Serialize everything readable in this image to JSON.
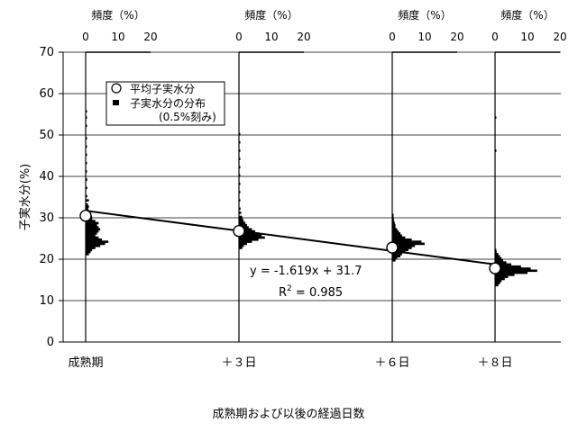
{
  "chart_data": {
    "type": "scatter",
    "ylabel": "子実水分(%)",
    "xlabel": "成熟期および以後の経過日数",
    "ylim": [
      0,
      70
    ],
    "yticks": [
      "0",
      "10",
      "20",
      "30",
      "40",
      "50",
      "60",
      "70"
    ],
    "categories": [
      "成熟期",
      "＋３日",
      "＋６日",
      "＋８日"
    ],
    "x_days": [
      0,
      3,
      6,
      8
    ],
    "freq_axis": {
      "title": "頻度（%）",
      "ticks": [
        "0",
        "10",
        "20"
      ],
      "range": [
        0,
        20
      ]
    },
    "legend": {
      "mean_label": "平均子実水分",
      "dist_label": "子実水分の分布",
      "dist_note": "(0.5%刻み)"
    },
    "mean_moisture": [
      30.5,
      26.8,
      22.8,
      17.8
    ],
    "regression": {
      "slope": -1.619,
      "intercept": 31.7,
      "equation": "y = -1.619x + 31.7",
      "r2_prefix": "R",
      "r2_sup": "2",
      "r2_value": " = 0.985"
    },
    "distributions": [
      {
        "group": "成熟期",
        "bins": [
          [
            21,
            1
          ],
          [
            21.5,
            1.5
          ],
          [
            22,
            2
          ],
          [
            22.5,
            3
          ],
          [
            23,
            4.5
          ],
          [
            23.5,
            6
          ],
          [
            24,
            7
          ],
          [
            24.5,
            5
          ],
          [
            25,
            4
          ],
          [
            25.5,
            3
          ],
          [
            26,
            3.5
          ],
          [
            26.5,
            4
          ],
          [
            27,
            4.5
          ],
          [
            27.5,
            4
          ],
          [
            28,
            3.5
          ],
          [
            28.5,
            4
          ],
          [
            29,
            3
          ],
          [
            29.5,
            2
          ],
          [
            30,
            2
          ],
          [
            30.5,
            1.5
          ],
          [
            31,
            1.2
          ],
          [
            31.5,
            1
          ],
          [
            32,
            0.8
          ],
          [
            32.5,
            1
          ],
          [
            33,
            0.7
          ],
          [
            34,
            1
          ],
          [
            35,
            0.5
          ],
          [
            37,
            0.5
          ],
          [
            39,
            0.5
          ],
          [
            41,
            0.3
          ],
          [
            43,
            0.3
          ],
          [
            45,
            0.3
          ],
          [
            47,
            0.2
          ],
          [
            49,
            0.3
          ],
          [
            52,
            0.2
          ],
          [
            54,
            0.2
          ],
          [
            55.5,
            0.2
          ]
        ]
      },
      {
        "group": "＋３日",
        "bins": [
          [
            22.5,
            1
          ],
          [
            23,
            1.5
          ],
          [
            23.5,
            2.5
          ],
          [
            24,
            4
          ],
          [
            24.5,
            6
          ],
          [
            25,
            8
          ],
          [
            25.5,
            7
          ],
          [
            26,
            6
          ],
          [
            26.5,
            5
          ],
          [
            27,
            4
          ],
          [
            27.5,
            3
          ],
          [
            28,
            2.5
          ],
          [
            28.5,
            2
          ],
          [
            29,
            1.5
          ],
          [
            29.5,
            1.2
          ],
          [
            30,
            1
          ],
          [
            31,
            0.7
          ],
          [
            32,
            0.5
          ],
          [
            34,
            0.4
          ],
          [
            36,
            0.3
          ],
          [
            38,
            0.3
          ],
          [
            40,
            0.2
          ],
          [
            42,
            0.2
          ],
          [
            44,
            0.2
          ],
          [
            46,
            0.2
          ],
          [
            48,
            0.2
          ],
          [
            50,
            0.2
          ]
        ]
      },
      {
        "group": "＋６日",
        "bins": [
          [
            19.5,
            1
          ],
          [
            20,
            1.5
          ],
          [
            20.5,
            2.5
          ],
          [
            21,
            3
          ],
          [
            21.5,
            4
          ],
          [
            22,
            5
          ],
          [
            22.5,
            6
          ],
          [
            23,
            7
          ],
          [
            23.5,
            10
          ],
          [
            24,
            9
          ],
          [
            24.5,
            6
          ],
          [
            25,
            4
          ],
          [
            25.5,
            3
          ],
          [
            26,
            2.5
          ],
          [
            26.5,
            2
          ],
          [
            27,
            1.5
          ],
          [
            27.5,
            1
          ],
          [
            28,
            1
          ],
          [
            28.5,
            0.8
          ],
          [
            29,
            0.6
          ],
          [
            29.5,
            0.5
          ],
          [
            30,
            0.4
          ],
          [
            30.5,
            0.3
          ]
        ]
      },
      {
        "group": "＋８日",
        "bins": [
          [
            13.5,
            1
          ],
          [
            14,
            1.5
          ],
          [
            14.5,
            2
          ],
          [
            15,
            3
          ],
          [
            15.5,
            4
          ],
          [
            16,
            6
          ],
          [
            16.5,
            10
          ],
          [
            17,
            13
          ],
          [
            17.5,
            11
          ],
          [
            18,
            8
          ],
          [
            18.5,
            5
          ],
          [
            19,
            3.5
          ],
          [
            19.5,
            2.5
          ],
          [
            20,
            2
          ],
          [
            20.5,
            1.5
          ],
          [
            21,
            1
          ],
          [
            21.5,
            0.5
          ],
          [
            22,
            0.3
          ],
          [
            46,
            0.2
          ],
          [
            54,
            0.2
          ]
        ]
      }
    ],
    "grid": true
  }
}
